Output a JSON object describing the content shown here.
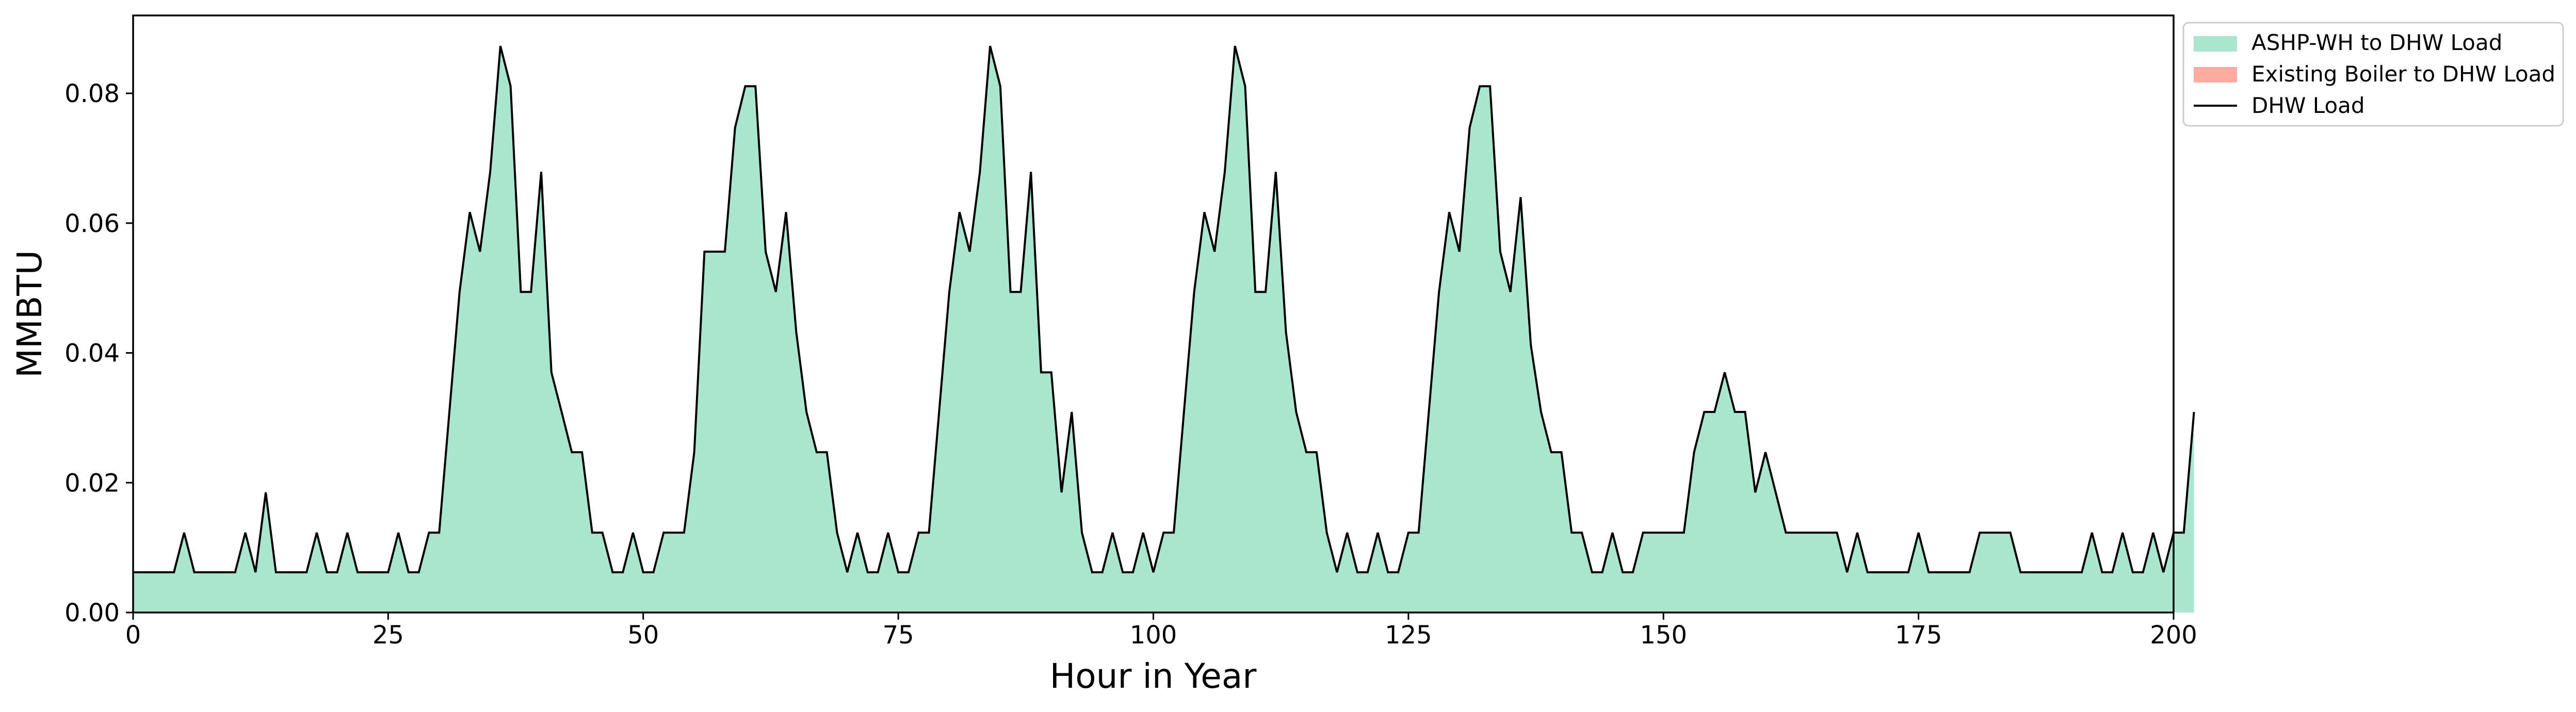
{
  "chart_data": {
    "type": "area",
    "title": "",
    "xlabel": "Hour in Year",
    "ylabel": "MMBTU",
    "xlim": [
      0,
      200
    ],
    "ylim": [
      0,
      0.092
    ],
    "grid": false,
    "legend_position": "outside-top-right",
    "x_ticks": [
      0,
      25,
      50,
      75,
      100,
      125,
      150,
      175,
      200
    ],
    "x_tick_labels": [
      "0",
      "25",
      "50",
      "75",
      "100",
      "125",
      "150",
      "175",
      "200"
    ],
    "y_ticks": [
      0,
      0.02,
      0.04,
      0.06,
      0.08
    ],
    "y_tick_labels": [
      "0.00",
      "0.02",
      "0.04",
      "0.06",
      "0.08"
    ],
    "series": [
      {
        "name": "ASHP-WH to DHW Load",
        "kind": "area",
        "color": "#a9e6d0",
        "values": [
          0.0062,
          0.0062,
          0.0062,
          0.0062,
          0.0062,
          0.0123,
          0.0062,
          0.0062,
          0.0062,
          0.0062,
          0.0062,
          0.0123,
          0.0062,
          0.0185,
          0.0062,
          0.0062,
          0.0062,
          0.0062,
          0.0123,
          0.0062,
          0.0062,
          0.0123,
          0.0062,
          0.0062,
          0.0062,
          0.0062,
          0.0123,
          0.0062,
          0.0062,
          0.0123,
          0.0123,
          0.0309,
          0.0494,
          0.0617,
          0.0556,
          0.0679,
          0.0873,
          0.0811,
          0.0494,
          0.0494,
          0.0679,
          0.037,
          0.0309,
          0.0247,
          0.0247,
          0.0123,
          0.0123,
          0.0062,
          0.0062,
          0.0123,
          0.0062,
          0.0062,
          0.0123,
          0.0123,
          0.0123,
          0.0247,
          0.0556,
          0.0556,
          0.0556,
          0.0747,
          0.0811,
          0.0811,
          0.0556,
          0.0494,
          0.0617,
          0.0432,
          0.0309,
          0.0247,
          0.0247,
          0.0123,
          0.0062,
          0.0123,
          0.0062,
          0.0062,
          0.0123,
          0.0062,
          0.0062,
          0.0123,
          0.0123,
          0.0309,
          0.0494,
          0.0617,
          0.0556,
          0.0679,
          0.0873,
          0.0811,
          0.0494,
          0.0494,
          0.0679,
          0.037,
          0.037,
          0.0185,
          0.0309,
          0.0123,
          0.0062,
          0.0062,
          0.0123,
          0.0062,
          0.0062,
          0.0123,
          0.0062,
          0.0123,
          0.0123,
          0.0309,
          0.0494,
          0.0617,
          0.0556,
          0.0679,
          0.0873,
          0.0811,
          0.0494,
          0.0494,
          0.0679,
          0.0432,
          0.0309,
          0.0247,
          0.0247,
          0.0123,
          0.0062,
          0.0123,
          0.0062,
          0.0062,
          0.0123,
          0.0062,
          0.0062,
          0.0123,
          0.0123,
          0.0309,
          0.0494,
          0.0617,
          0.0556,
          0.0747,
          0.0811,
          0.0811,
          0.0556,
          0.0494,
          0.064,
          0.0412,
          0.0309,
          0.0247,
          0.0247,
          0.0123,
          0.0123,
          0.0062,
          0.0062,
          0.0123,
          0.0062,
          0.0062,
          0.0123,
          0.0123,
          0.0123,
          0.0123,
          0.0123,
          0.0247,
          0.0309,
          0.0309,
          0.037,
          0.0309,
          0.0309,
          0.0185,
          0.0247,
          0.0185,
          0.0123,
          0.0123,
          0.0123,
          0.0123,
          0.0123,
          0.0123,
          0.0062,
          0.0123,
          0.0062,
          0.0062,
          0.0062,
          0.0062,
          0.0062,
          0.0123,
          0.0062,
          0.0062,
          0.0062,
          0.0062,
          0.0062,
          0.0123,
          0.0123,
          0.0123,
          0.0123,
          0.0062,
          0.0062,
          0.0062,
          0.0062,
          0.0062,
          0.0062,
          0.0062,
          0.0123,
          0.0062,
          0.0062,
          0.0123,
          0.0062,
          0.0062,
          0.0123,
          0.0062,
          0.0123,
          0.0123,
          0.0309
        ]
      },
      {
        "name": "Existing Boiler to DHW Load",
        "kind": "area",
        "color": "#ffaaa0",
        "values": []
      },
      {
        "name": "DHW Load",
        "kind": "line",
        "color": "#000000",
        "same_as": "ASHP-WH to DHW Load"
      }
    ]
  }
}
